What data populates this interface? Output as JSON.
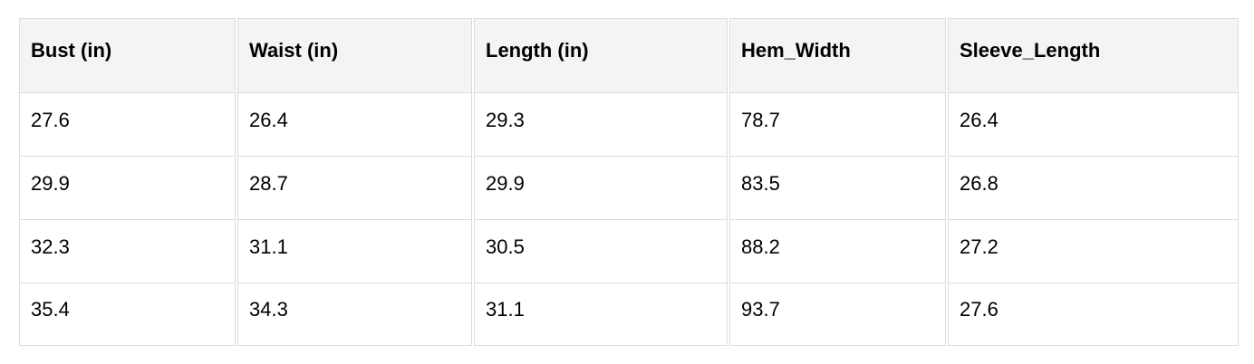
{
  "table": {
    "headers": [
      "Bust (in)",
      "Waist (in)",
      "Length (in)",
      "Hem_Width",
      "Sleeve_Length"
    ],
    "rows": [
      [
        "27.6",
        "26.4",
        "29.3",
        "78.7",
        "26.4"
      ],
      [
        "29.9",
        "28.7",
        "29.9",
        "83.5",
        "26.8"
      ],
      [
        "32.3",
        "31.1",
        "30.5",
        "88.2",
        "27.2"
      ],
      [
        "35.4",
        "34.3",
        "31.1",
        "93.7",
        "27.6"
      ]
    ]
  },
  "colors": {
    "header_bg": "#f4f4f4",
    "border": "#dcdcdc"
  }
}
